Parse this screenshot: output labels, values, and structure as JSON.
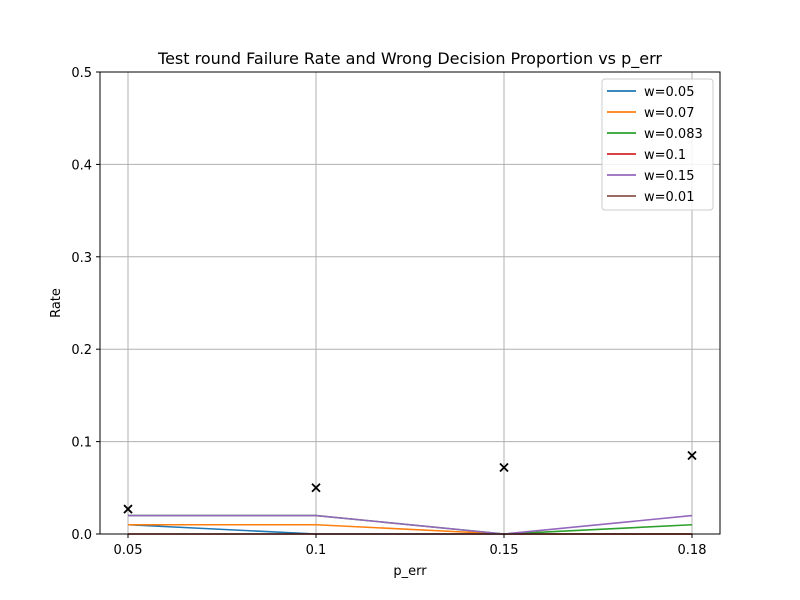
{
  "chart_data": {
    "type": "line",
    "title": "Test round Failure Rate and Wrong Decision Proportion vs p_err",
    "xlabel": "p_err",
    "ylabel": "Rate",
    "categories": [
      "0.05",
      "0.1",
      "0.15",
      "0.18"
    ],
    "ylim": [
      0,
      0.5
    ],
    "yticks": [
      "0.0",
      "0.1",
      "0.2",
      "0.3",
      "0.4",
      "0.5"
    ],
    "grid": true,
    "legend_position": "top-right",
    "series": [
      {
        "name": "w=0.05",
        "color": "#1f77b4",
        "values": [
          0.01,
          0.0,
          0.0,
          0.0
        ]
      },
      {
        "name": "w=0.07",
        "color": "#ff7f0e",
        "values": [
          0.01,
          0.01,
          0.0,
          0.0
        ]
      },
      {
        "name": "w=0.083",
        "color": "#2ca02c",
        "values": [
          0.02,
          0.02,
          0.0,
          0.01
        ]
      },
      {
        "name": "w=0.1",
        "color": "#d62728",
        "values": [
          0.0,
          0.0,
          0.0,
          0.0
        ]
      },
      {
        "name": "w=0.15",
        "color": "#9467bd",
        "values": [
          0.02,
          0.02,
          0.0,
          0.02
        ]
      },
      {
        "name": "w=0.01",
        "color": "#8c564b",
        "values": [
          0.0,
          0.0,
          0.0,
          0.0
        ]
      }
    ],
    "markers": {
      "symbol": "x",
      "color": "#000000",
      "values": [
        0.027,
        0.05,
        0.072,
        0.085
      ]
    }
  }
}
